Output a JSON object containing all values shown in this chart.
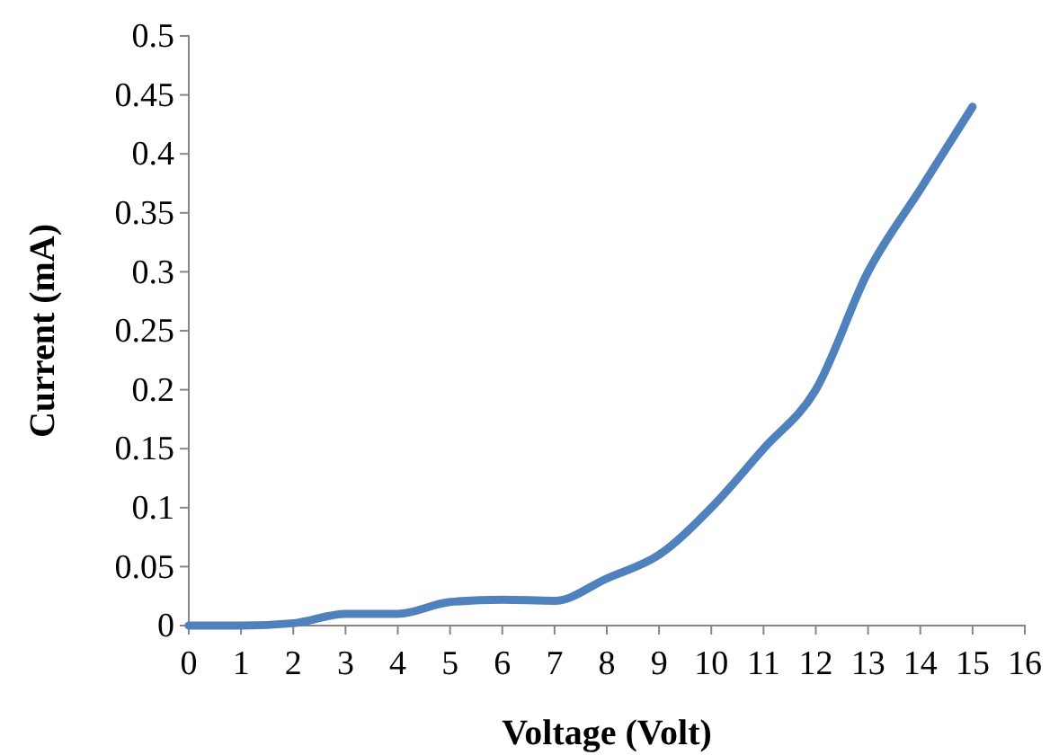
{
  "chart_data": {
    "type": "line",
    "xlabel": "Voltage (Volt)",
    "ylabel": "Current (mA)",
    "x": [
      0,
      1,
      2,
      3,
      4,
      5,
      6,
      7,
      8,
      9,
      10,
      11,
      12,
      13,
      14,
      15
    ],
    "series": [
      {
        "color": "#4f81bd",
        "values": [
          0,
          0,
          0.002,
          0.01,
          0.01,
          0.02,
          0.022,
          0.021,
          0.04,
          0.06,
          0.1,
          0.15,
          0.2,
          0.3,
          0.37,
          0.44
        ]
      }
    ],
    "xlim": [
      0,
      16
    ],
    "xticks": [
      0,
      1,
      2,
      3,
      4,
      5,
      6,
      7,
      8,
      9,
      10,
      11,
      12,
      13,
      14,
      15,
      16
    ],
    "ylim": [
      0,
      0.5
    ],
    "yticks": [
      0,
      0.05,
      0.1,
      0.15,
      0.2,
      0.25,
      0.3,
      0.35,
      0.4,
      0.45,
      0.5
    ],
    "grid": false,
    "marker": "none",
    "line_style": "solid"
  }
}
